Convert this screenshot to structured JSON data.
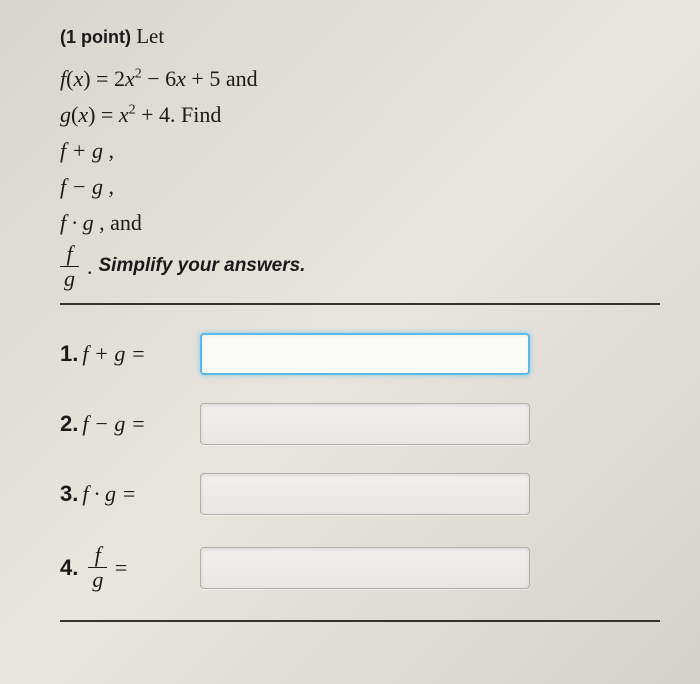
{
  "header": {
    "points": "(1 point)",
    "let": "Let"
  },
  "functions": {
    "f_def": "f(x) = 2x² − 6x + 5",
    "and1": "and",
    "g_def": "g(x) = x² + 4.",
    "find": "Find",
    "op1": "f + g ,",
    "op2": "f − g ,",
    "op3": "f · g ,",
    "op4_and": "and",
    "frac_num": "f",
    "frac_den": "g",
    "period": ".",
    "simplify": "Simplify your answers."
  },
  "answers": {
    "q1": {
      "num": "1.",
      "expr": "f + g =",
      "value": ""
    },
    "q2": {
      "num": "2.",
      "expr": "f − g =",
      "value": ""
    },
    "q3": {
      "num": "3.",
      "expr": "f · g =",
      "value": ""
    },
    "q4": {
      "num": "4.",
      "frac_num": "f",
      "frac_den": "g",
      "eq": "=",
      "value": ""
    }
  },
  "styling": {
    "input_border_active": "#5cb8e8",
    "input_border": "#b0b0b0",
    "text_color": "#1a1a1a",
    "bg_gradient_start": "#d8d5ce",
    "bg_gradient_end": "#d5d2cb"
  }
}
